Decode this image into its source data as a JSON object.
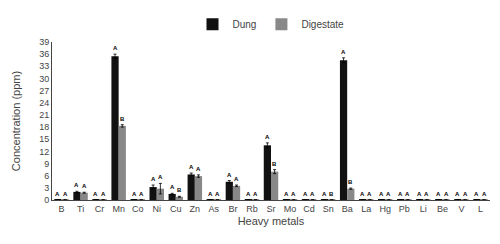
{
  "chart_data": {
    "type": "bar",
    "xlabel": "Heavy metals",
    "ylabel": "Concentration (ppm)",
    "categories": [
      "B",
      "Ti",
      "Cr",
      "Mn",
      "Co",
      "Ni",
      "Cu",
      "Zn",
      "As",
      "Br",
      "Rb",
      "Sr",
      "Mo",
      "Cd",
      "Sn",
      "Ba",
      "La",
      "Hg",
      "Pb",
      "Li",
      "Be",
      "V",
      "L"
    ],
    "series": [
      {
        "name": "Dung",
        "color": "#111111",
        "values": [
          0.05,
          2.0,
          0.05,
          35.5,
          0.05,
          3.2,
          1.5,
          6.3,
          0.05,
          4.5,
          0.05,
          13.5,
          0.05,
          0.05,
          0.05,
          34.5,
          0.05,
          0.05,
          0.05,
          0.05,
          0.05,
          0.05,
          0.05
        ],
        "errors": [
          0.02,
          0.15,
          0.02,
          0.5,
          0.02,
          0.5,
          0.15,
          0.35,
          0.02,
          0.3,
          0.02,
          0.6,
          0.02,
          0.02,
          0.02,
          0.6,
          0.02,
          0.02,
          0.02,
          0.02,
          0.02,
          0.02,
          0.02
        ],
        "labels": [
          "A",
          "A",
          "A",
          "A",
          "A",
          "A",
          "A",
          "A",
          "A",
          "A",
          "A",
          "A",
          "A",
          "A",
          "A",
          "A",
          "A",
          "A",
          "A",
          "A",
          "A",
          "A",
          "A"
        ]
      },
      {
        "name": "Digestate",
        "color": "#888888",
        "values": [
          0.05,
          1.8,
          0.05,
          18.3,
          0.05,
          2.8,
          0.8,
          5.9,
          0.05,
          3.5,
          0.05,
          7.0,
          0.05,
          0.05,
          0.05,
          2.8,
          0.05,
          0.05,
          0.05,
          0.05,
          0.05,
          0.05,
          0.05
        ],
        "errors": [
          0.02,
          0.12,
          0.02,
          0.3,
          0.02,
          1.3,
          0.12,
          0.3,
          0.02,
          0.2,
          0.02,
          0.5,
          0.02,
          0.02,
          0.02,
          0.15,
          0.02,
          0.02,
          0.02,
          0.02,
          0.02,
          0.02,
          0.02
        ],
        "labels": [
          "A",
          "A",
          "A",
          "B",
          "A",
          "A",
          "B",
          "A",
          "A",
          "A",
          "A",
          "B",
          "A",
          "A",
          "B",
          "B",
          "A",
          "A",
          "A",
          "A",
          "A",
          "A",
          "A"
        ]
      }
    ],
    "ylim": [
      0,
      39
    ],
    "yticks": [
      0,
      3,
      6,
      9,
      12,
      15,
      18,
      21,
      24,
      27,
      30,
      33,
      36,
      39
    ],
    "grid": false,
    "legend": "top"
  }
}
